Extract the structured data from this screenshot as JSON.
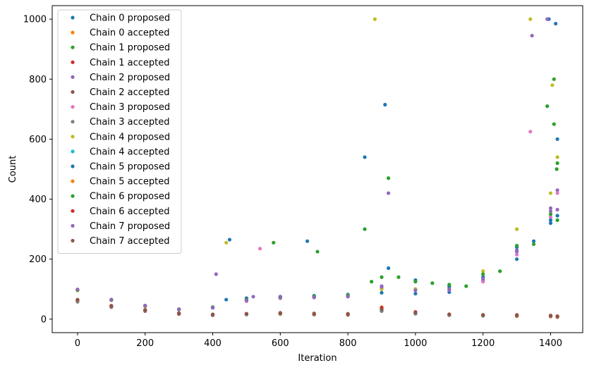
{
  "chart_data": {
    "type": "scatter",
    "title": "",
    "xlabel": "Iteration",
    "ylabel": "Count",
    "xlim": [
      -75,
      1495
    ],
    "ylim": [
      -45,
      1045
    ],
    "xticks": [
      0,
      200,
      400,
      600,
      800,
      1000,
      1200,
      1400
    ],
    "yticks": [
      0,
      200,
      400,
      600,
      800,
      1000
    ],
    "legend_position": "top-left",
    "grid": false,
    "series": [
      {
        "name": "Chain 0 proposed",
        "color": "#1f77b4",
        "points": [
          [
            0,
            98
          ],
          [
            100,
            65
          ],
          [
            200,
            45
          ],
          [
            300,
            32
          ],
          [
            400,
            38
          ],
          [
            440,
            65
          ],
          [
            500,
            70
          ],
          [
            600,
            75
          ],
          [
            700,
            78
          ],
          [
            800,
            82
          ],
          [
            900,
            88
          ],
          [
            1000,
            85
          ],
          [
            1100,
            90
          ],
          [
            1200,
            130
          ],
          [
            1300,
            200
          ],
          [
            1350,
            260
          ],
          [
            1400,
            320
          ],
          [
            1420,
            345
          ],
          [
            850,
            540
          ],
          [
            910,
            715
          ],
          [
            1415,
            985
          ]
        ]
      },
      {
        "name": "Chain 0 accepted",
        "color": "#ff7f0e",
        "points": [
          [
            0,
            60
          ],
          [
            100,
            42
          ],
          [
            200,
            28
          ],
          [
            300,
            18
          ],
          [
            400,
            14
          ],
          [
            500,
            15
          ],
          [
            600,
            18
          ],
          [
            700,
            16
          ],
          [
            800,
            15
          ],
          [
            900,
            30
          ],
          [
            1000,
            20
          ],
          [
            1100,
            14
          ],
          [
            1200,
            13
          ],
          [
            1300,
            12
          ],
          [
            1400,
            10
          ],
          [
            1420,
            8
          ]
        ]
      },
      {
        "name": "Chain 1 proposed",
        "color": "#2ca02c",
        "points": [
          [
            0,
            97
          ],
          [
            100,
            64
          ],
          [
            200,
            44
          ],
          [
            300,
            33
          ],
          [
            400,
            40
          ],
          [
            500,
            63
          ],
          [
            600,
            70
          ],
          [
            700,
            75
          ],
          [
            800,
            78
          ],
          [
            870,
            125
          ],
          [
            950,
            140
          ],
          [
            1050,
            120
          ],
          [
            1150,
            110
          ],
          [
            1250,
            160
          ],
          [
            1350,
            250
          ],
          [
            1420,
            330
          ],
          [
            850,
            300
          ],
          [
            920,
            470
          ],
          [
            1390,
            710
          ],
          [
            1410,
            800
          ],
          [
            1418,
            500
          ]
        ]
      },
      {
        "name": "Chain 1 accepted",
        "color": "#d62728",
        "points": [
          [
            0,
            58
          ],
          [
            100,
            40
          ],
          [
            200,
            27
          ],
          [
            300,
            17
          ],
          [
            400,
            13
          ],
          [
            500,
            16
          ],
          [
            600,
            19
          ],
          [
            700,
            15
          ],
          [
            800,
            17
          ],
          [
            900,
            35
          ],
          [
            1000,
            22
          ],
          [
            1100,
            15
          ],
          [
            1200,
            12
          ],
          [
            1300,
            14
          ],
          [
            1400,
            11
          ],
          [
            1420,
            9
          ]
        ]
      },
      {
        "name": "Chain 2 proposed",
        "color": "#9467bd",
        "points": [
          [
            0,
            98
          ],
          [
            100,
            64
          ],
          [
            200,
            44
          ],
          [
            300,
            33
          ],
          [
            400,
            38
          ],
          [
            520,
            75
          ],
          [
            600,
            75
          ],
          [
            700,
            72
          ],
          [
            800,
            75
          ],
          [
            900,
            110
          ],
          [
            1000,
            100
          ],
          [
            1100,
            105
          ],
          [
            1200,
            140
          ],
          [
            1300,
            230
          ],
          [
            1400,
            360
          ],
          [
            1420,
            430
          ],
          [
            410,
            150
          ],
          [
            1345,
            945
          ]
        ]
      },
      {
        "name": "Chain 2 accepted",
        "color": "#8c564b",
        "points": [
          [
            0,
            62
          ],
          [
            100,
            43
          ],
          [
            200,
            29
          ],
          [
            300,
            19
          ],
          [
            400,
            15
          ],
          [
            500,
            17
          ],
          [
            600,
            20
          ],
          [
            700,
            16
          ],
          [
            800,
            14
          ],
          [
            900,
            28
          ],
          [
            1000,
            18
          ],
          [
            1100,
            13
          ],
          [
            1200,
            11
          ],
          [
            1300,
            10
          ],
          [
            1400,
            9
          ],
          [
            1420,
            7
          ]
        ]
      },
      {
        "name": "Chain 3 proposed",
        "color": "#e377c2",
        "points": [
          [
            0,
            99
          ],
          [
            100,
            65
          ],
          [
            200,
            45
          ],
          [
            300,
            33
          ],
          [
            400,
            38
          ],
          [
            500,
            60
          ],
          [
            600,
            72
          ],
          [
            700,
            74
          ],
          [
            800,
            76
          ],
          [
            900,
            105
          ],
          [
            1000,
            97
          ],
          [
            1100,
            98
          ],
          [
            1200,
            125
          ],
          [
            1300,
            215
          ],
          [
            1400,
            340
          ],
          [
            1420,
            420
          ],
          [
            540,
            235
          ],
          [
            1340,
            625
          ]
        ]
      },
      {
        "name": "Chain 3 accepted",
        "color": "#7f7f7f",
        "points": [
          [
            0,
            59
          ],
          [
            100,
            41
          ],
          [
            200,
            28
          ],
          [
            300,
            18
          ],
          [
            400,
            14
          ],
          [
            500,
            16
          ],
          [
            600,
            17
          ],
          [
            700,
            15
          ],
          [
            800,
            16
          ],
          [
            900,
            27
          ],
          [
            1000,
            19
          ],
          [
            1100,
            14
          ],
          [
            1200,
            12
          ],
          [
            1300,
            11
          ],
          [
            1400,
            10
          ],
          [
            1420,
            8
          ]
        ]
      },
      {
        "name": "Chain 4 proposed",
        "color": "#bcbd22",
        "points": [
          [
            0,
            96
          ],
          [
            100,
            63
          ],
          [
            200,
            43
          ],
          [
            300,
            32
          ],
          [
            400,
            40
          ],
          [
            500,
            62
          ],
          [
            600,
            70
          ],
          [
            700,
            73
          ],
          [
            800,
            80
          ],
          [
            900,
            100
          ],
          [
            1000,
            100
          ],
          [
            1100,
            102
          ],
          [
            1200,
            160
          ],
          [
            1300,
            300
          ],
          [
            1400,
            420
          ],
          [
            1420,
            540
          ],
          [
            440,
            255
          ],
          [
            880,
            1000
          ],
          [
            1340,
            1000
          ],
          [
            1405,
            780
          ]
        ]
      },
      {
        "name": "Chain 4 accepted",
        "color": "#17becf",
        "points": [
          [
            0,
            61
          ],
          [
            100,
            42
          ],
          [
            200,
            29
          ],
          [
            300,
            18
          ],
          [
            400,
            14
          ],
          [
            500,
            15
          ],
          [
            600,
            18
          ],
          [
            700,
            17
          ],
          [
            800,
            15
          ],
          [
            900,
            32
          ],
          [
            1000,
            21
          ],
          [
            1100,
            14
          ],
          [
            1200,
            12
          ],
          [
            1300,
            13
          ],
          [
            1400,
            11
          ],
          [
            1420,
            9
          ]
        ]
      },
      {
        "name": "Chain 5 proposed",
        "color": "#1f77b4",
        "points": [
          [
            0,
            98
          ],
          [
            100,
            65
          ],
          [
            200,
            45
          ],
          [
            300,
            32
          ],
          [
            400,
            39
          ],
          [
            500,
            64
          ],
          [
            600,
            73
          ],
          [
            700,
            76
          ],
          [
            800,
            79
          ],
          [
            920,
            170
          ],
          [
            1000,
            130
          ],
          [
            1100,
            110
          ],
          [
            1200,
            140
          ],
          [
            1300,
            240
          ],
          [
            1400,
            330
          ],
          [
            1420,
            600
          ],
          [
            450,
            265
          ],
          [
            680,
            260
          ],
          [
            1395,
            1000
          ]
        ]
      },
      {
        "name": "Chain 5 accepted",
        "color": "#ff7f0e",
        "points": [
          [
            0,
            63
          ],
          [
            100,
            44
          ],
          [
            200,
            30
          ],
          [
            300,
            19
          ],
          [
            400,
            15
          ],
          [
            500,
            17
          ],
          [
            600,
            19
          ],
          [
            700,
            17
          ],
          [
            800,
            16
          ],
          [
            900,
            40
          ],
          [
            1000,
            23
          ],
          [
            1100,
            15
          ],
          [
            1200,
            13
          ],
          [
            1300,
            12
          ],
          [
            1400,
            10
          ],
          [
            1420,
            8
          ]
        ]
      },
      {
        "name": "Chain 6 proposed",
        "color": "#2ca02c",
        "points": [
          [
            0,
            97
          ],
          [
            100,
            64
          ],
          [
            200,
            44
          ],
          [
            300,
            33
          ],
          [
            400,
            40
          ],
          [
            500,
            65
          ],
          [
            600,
            72
          ],
          [
            700,
            77
          ],
          [
            800,
            80
          ],
          [
            900,
            140
          ],
          [
            1000,
            125
          ],
          [
            1100,
            115
          ],
          [
            1200,
            150
          ],
          [
            1300,
            245
          ],
          [
            1400,
            350
          ],
          [
            1420,
            520
          ],
          [
            580,
            255
          ],
          [
            710,
            225
          ],
          [
            1410,
            650
          ]
        ]
      },
      {
        "name": "Chain 6 accepted",
        "color": "#d62728",
        "points": [
          [
            0,
            64
          ],
          [
            100,
            44
          ],
          [
            200,
            30
          ],
          [
            300,
            19
          ],
          [
            400,
            15
          ],
          [
            500,
            18
          ],
          [
            600,
            20
          ],
          [
            700,
            18
          ],
          [
            800,
            17
          ],
          [
            900,
            38
          ],
          [
            1000,
            24
          ],
          [
            1100,
            16
          ],
          [
            1200,
            14
          ],
          [
            1300,
            13
          ],
          [
            1400,
            12
          ],
          [
            1420,
            10
          ]
        ]
      },
      {
        "name": "Chain 7 proposed",
        "color": "#9467bd",
        "points": [
          [
            0,
            99
          ],
          [
            100,
            65
          ],
          [
            200,
            45
          ],
          [
            300,
            33
          ],
          [
            400,
            38
          ],
          [
            500,
            62
          ],
          [
            600,
            71
          ],
          [
            700,
            73
          ],
          [
            800,
            76
          ],
          [
            900,
            108
          ],
          [
            1000,
            96
          ],
          [
            1100,
            99
          ],
          [
            1200,
            135
          ],
          [
            1300,
            225
          ],
          [
            1400,
            370
          ],
          [
            1420,
            365
          ],
          [
            920,
            420
          ],
          [
            1390,
            1000
          ]
        ]
      },
      {
        "name": "Chain 7 accepted",
        "color": "#8c564b",
        "points": [
          [
            0,
            65
          ],
          [
            100,
            45
          ],
          [
            200,
            31
          ],
          [
            300,
            20
          ],
          [
            400,
            16
          ],
          [
            500,
            18
          ],
          [
            600,
            21
          ],
          [
            700,
            19
          ],
          [
            800,
            18
          ],
          [
            900,
            33
          ],
          [
            1000,
            22
          ],
          [
            1100,
            16
          ],
          [
            1200,
            14
          ],
          [
            1300,
            13
          ],
          [
            1400,
            11
          ],
          [
            1420,
            9
          ]
        ]
      }
    ]
  }
}
